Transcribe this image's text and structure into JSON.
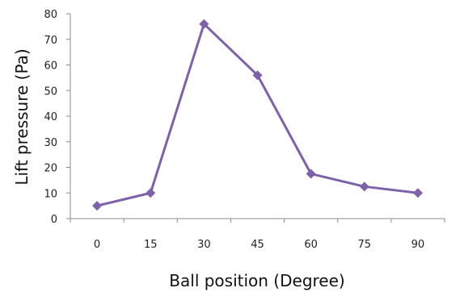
{
  "chart_data": {
    "type": "line",
    "xlabel": "Ball position (Degree)",
    "ylabel": "Lift pressure (Pa)",
    "categories": [
      "0",
      "15",
      "30",
      "45",
      "60",
      "75",
      "90"
    ],
    "y_ticks": [
      "0",
      "10",
      "20",
      "30",
      "40",
      "50",
      "60",
      "70",
      "80"
    ],
    "ylim": [
      0,
      80
    ],
    "grid": false,
    "legend": "none",
    "series": [
      {
        "values": [
          5,
          10,
          76,
          56,
          17.5,
          12.5,
          10
        ],
        "color": "#7d62a8",
        "marker": "diamond"
      }
    ]
  }
}
